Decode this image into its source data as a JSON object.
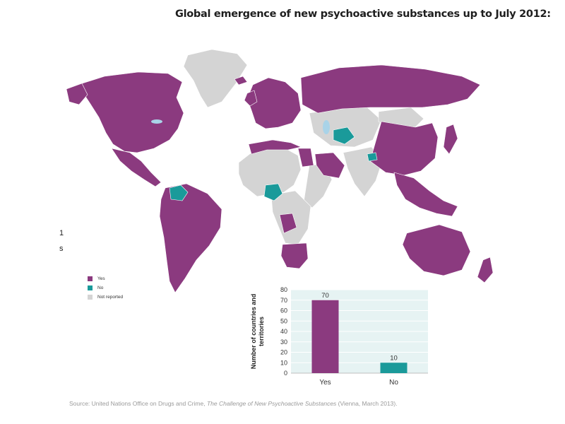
{
  "title": "Global emergence of new psychoactive substances up to July 2012:",
  "legend": [
    {
      "label": "Yes",
      "color": "#8b3a7f"
    },
    {
      "label": "No",
      "color": "#1a9a9a"
    },
    {
      "label": "Not reported",
      "color": "#d4d4d4"
    }
  ],
  "edge_marks": [
    "1",
    "s"
  ],
  "chart_data": {
    "type": "bar",
    "categories": [
      "Yes",
      "No"
    ],
    "values": [
      70,
      10
    ],
    "data_labels": [
      "70",
      "10"
    ],
    "colors": [
      "#8b3a7f",
      "#1a9a9a"
    ],
    "ylabel": "Number of countries and territories",
    "ylabel_lines": [
      "Number of countries and",
      "territories"
    ],
    "ylim": [
      0,
      80
    ],
    "yticks": [
      0,
      10,
      20,
      30,
      40,
      50,
      60,
      70,
      80
    ],
    "background": "#e6f3f3",
    "grid": true
  },
  "source": {
    "prefix": "Source: United Nations Office on Drugs and Crime, ",
    "publication": "The Challenge of New Psychoactive Substances",
    "suffix": " (Vienna, March 2013)."
  },
  "colors": {
    "yes": "#8b3a7f",
    "no": "#1a9a9a",
    "not_reported": "#d4d4d4",
    "water": "#a9d3e8"
  }
}
